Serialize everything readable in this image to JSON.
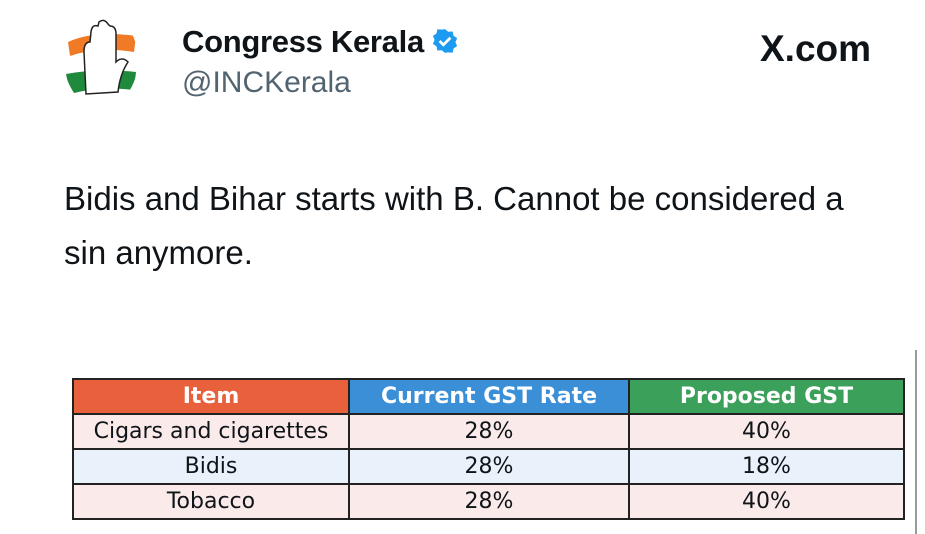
{
  "post": {
    "author_name": "Congress Kerala",
    "handle": "@INCKerala",
    "verified": true,
    "site_label": "X.com",
    "text": "Bidis and Bihar starts with B. Cannot be considered a sin anymore."
  },
  "table": {
    "headers": [
      "Item",
      "Current GST Rate",
      "Proposed GST"
    ],
    "header_colors": [
      "#e8603c",
      "#3b8fd6",
      "#3aa05a"
    ],
    "rows": [
      [
        "Cigars and cigarettes",
        "28%",
        "40%"
      ],
      [
        "Bidis",
        "28%",
        "18%"
      ],
      [
        "Tobacco",
        "28%",
        "40%"
      ]
    ]
  }
}
